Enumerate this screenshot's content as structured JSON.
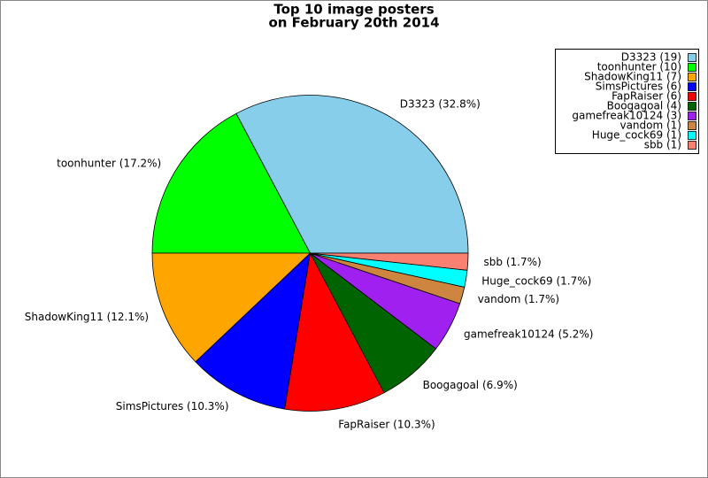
{
  "chart_data": {
    "type": "pie",
    "title": [
      "Top 10 image posters",
      "on February 20th 2014"
    ],
    "values": [
      19,
      10,
      7,
      6,
      6,
      4,
      3,
      1,
      1,
      1
    ],
    "colors": [
      "#87ceeb",
      "#00ff00",
      "#ffa500",
      "#0000ff",
      "#ff0000",
      "#006400",
      "#a020f0",
      "#cd853f",
      "#00ffff",
      "#fa8072"
    ],
    "legend_labels": [
      "D3323 (19)",
      "toonhunter (10)",
      "ShadowKing11 (7)",
      "SimsPictures (6)",
      "FapRaiser (6)",
      "Boogagoal (4)",
      "gamefreak10124 (3)",
      "vandom (1)",
      "Huge_cock69 (1)",
      "sbb (1)"
    ],
    "slice_labels": [
      "D3323 (32.8%)",
      "toonhunter (17.2%)",
      "ShadowKing11 (12.1%)",
      "SimsPictures (10.3%)",
      "FapRaiser (10.3%)",
      "Boogagoal (6.9%)",
      "gamefreak10124 (5.2%)",
      "vandom (1.7%)",
      "Huge_cock69 (1.7%)",
      "sbb (1.7%)"
    ],
    "legend": "upper right"
  }
}
